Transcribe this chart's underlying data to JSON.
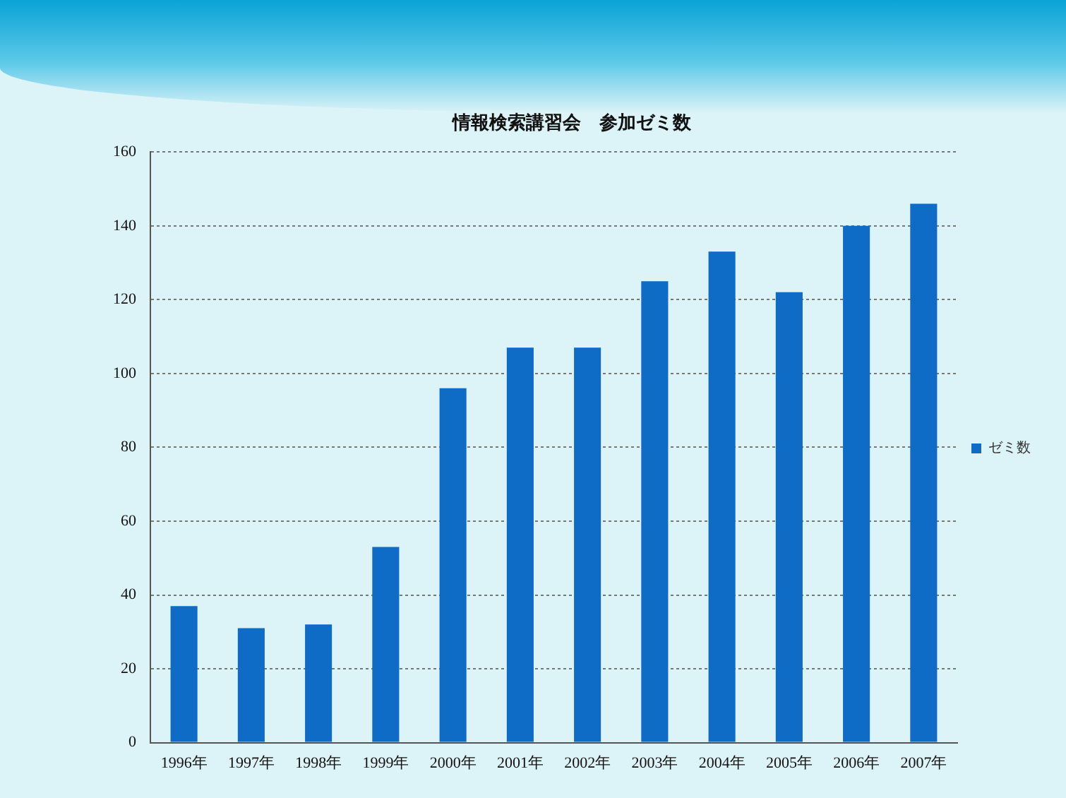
{
  "chart_data": {
    "type": "bar",
    "title": "情報検索講習会　参加ゼミ数",
    "categories": [
      "1996年",
      "1997年",
      "1998年",
      "1999年",
      "2000年",
      "2001年",
      "2002年",
      "2003年",
      "2004年",
      "2005年",
      "2006年",
      "2007年"
    ],
    "series": [
      {
        "name": "ゼミ数",
        "color": "#0f6cc6",
        "values": [
          37,
          31,
          32,
          53,
          96,
          107,
          107,
          125,
          133,
          122,
          140,
          146
        ]
      }
    ],
    "ylim": [
      0,
      160
    ],
    "yticks": [
      0,
      20,
      40,
      60,
      80,
      100,
      120,
      140,
      160
    ],
    "grid": "y",
    "legend": "right"
  }
}
